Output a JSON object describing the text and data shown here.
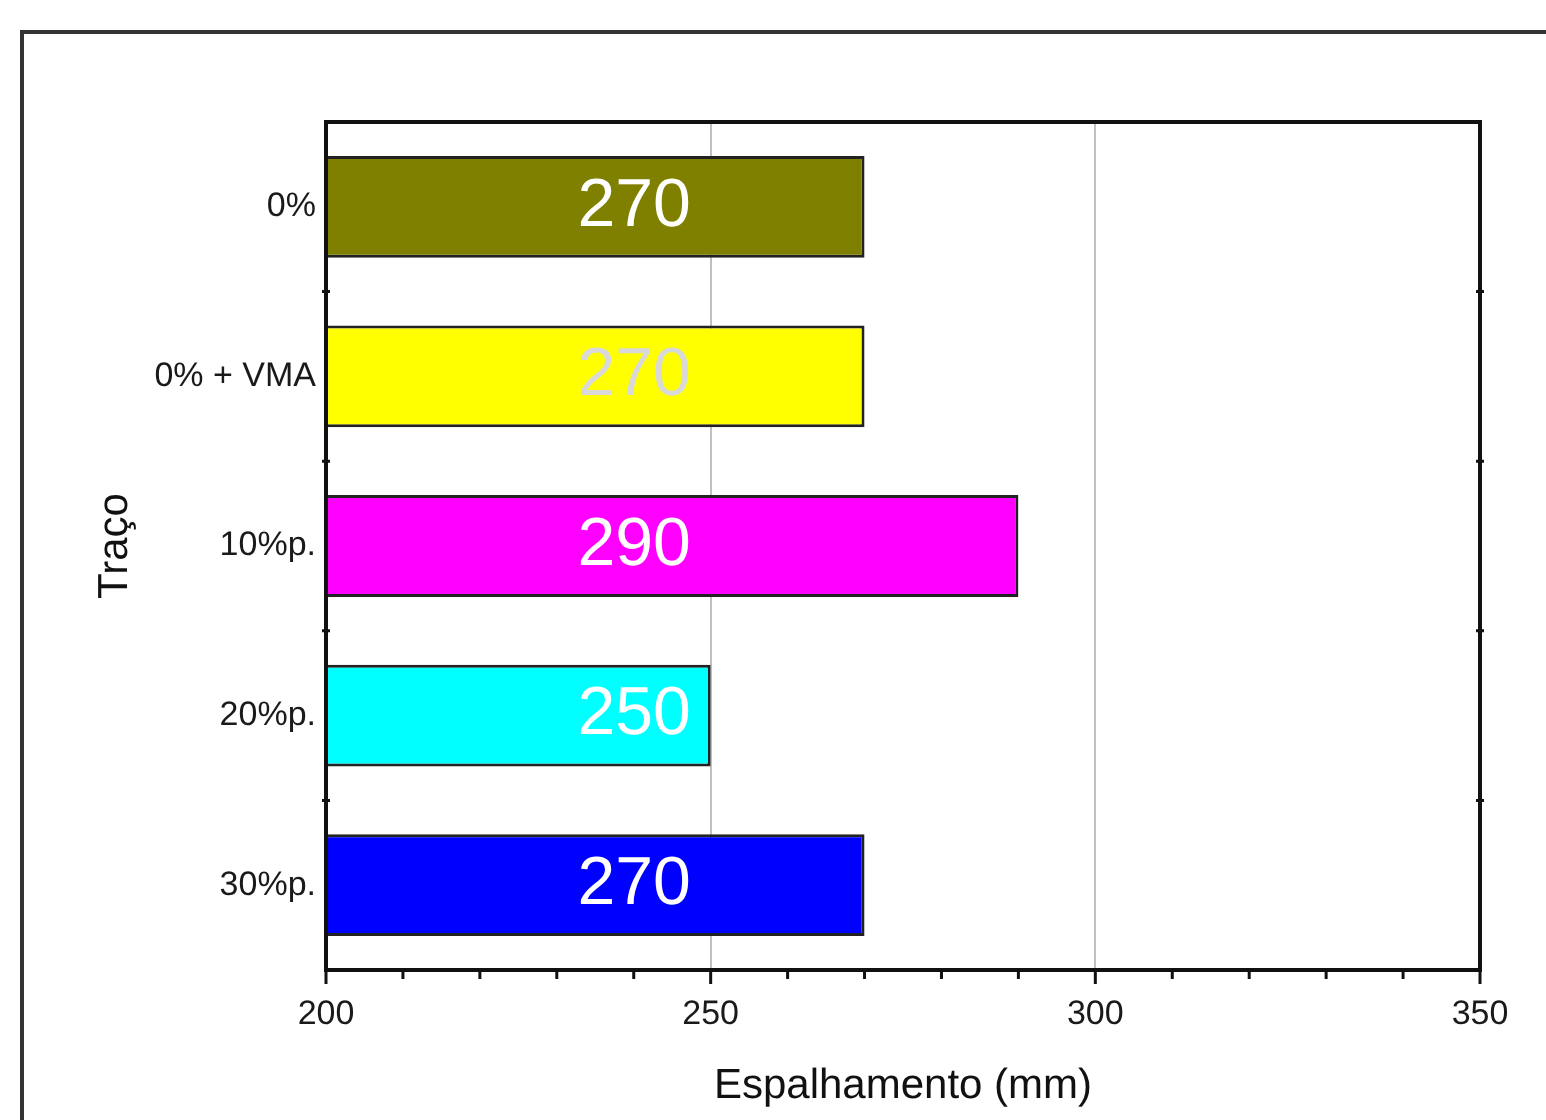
{
  "chart_data": {
    "type": "bar",
    "orientation": "horizontal",
    "xlabel": "Espalhamento (mm)",
    "ylabel": "Traço",
    "categories": [
      "0%",
      "0% + VMA",
      "10%p.",
      "20%p.",
      "30%p."
    ],
    "values": [
      270,
      270,
      290,
      250,
      270
    ],
    "colors": [
      "#808000",
      "#ffff00",
      "#ff00ff",
      "#00ffff",
      "#0000ff"
    ],
    "xlim": [
      200,
      350
    ],
    "xticks": [
      200,
      {
        "value": 210,
        "label": null
      },
      {
        "value": 220,
        "label": null
      },
      {
        "value": 230,
        "label": null
      },
      {
        "value": 240,
        "label": null
      },
      250,
      {
        "value": 260,
        "label": null
      },
      {
        "value": 270,
        "label": null
      },
      {
        "value": 280,
        "label": null
      },
      {
        "value": 290,
        "label": null
      },
      300,
      {
        "value": 310,
        "label": null
      },
      {
        "value": 320,
        "label": null
      },
      {
        "value": 330,
        "label": null
      },
      {
        "value": 340,
        "label": null
      },
      350
    ],
    "grid": "x",
    "data_labels": true
  }
}
